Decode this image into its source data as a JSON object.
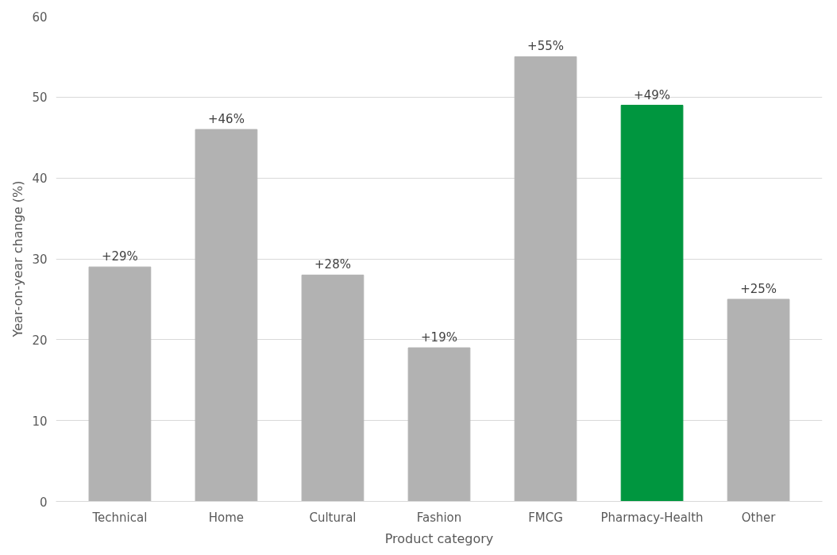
{
  "chart_data": {
    "type": "bar",
    "xlabel": "Product category",
    "ylabel": "Year-on-year change (%)",
    "categories": [
      "Technical",
      "Home",
      "Cultural",
      "Fashion",
      "FMCG",
      "Pharmacy-Health",
      "Other"
    ],
    "values": [
      29,
      46,
      28,
      19,
      55,
      49,
      25
    ],
    "colors": [
      "#b2b2b2",
      "#b2b2b2",
      "#b2b2b2",
      "#b2b2b2",
      "#b2b2b2",
      "#00963f",
      "#b2b2b2"
    ],
    "value_labels": [
      "+29%",
      "+46%",
      "+28%",
      "+19%",
      "+55%",
      "+49%",
      "+25%"
    ],
    "ylim": [
      0,
      60
    ],
    "yticks": [
      0,
      10,
      20,
      30,
      40,
      50,
      60
    ],
    "grid": "y"
  }
}
